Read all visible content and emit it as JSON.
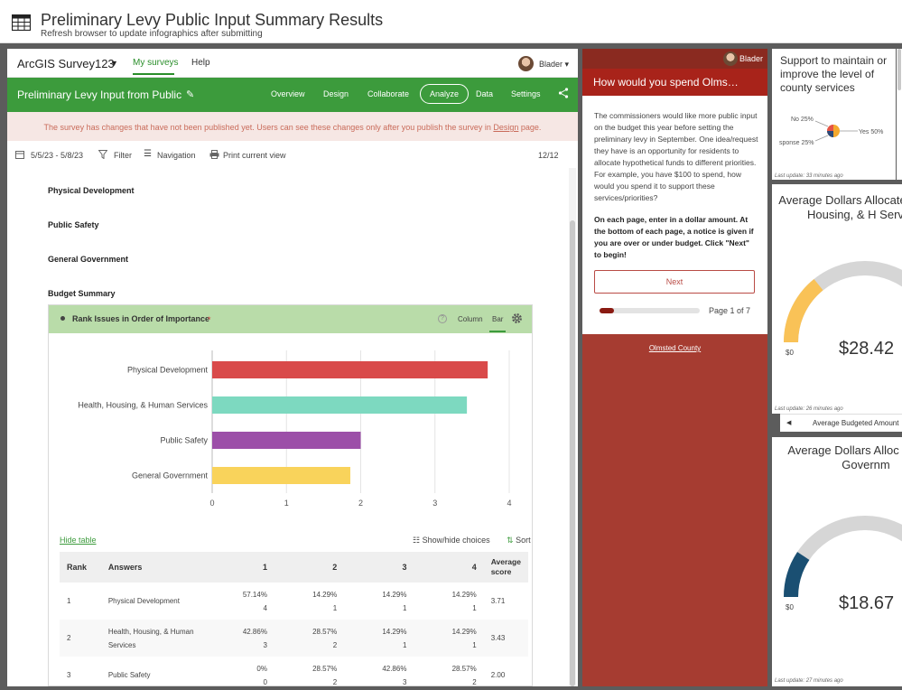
{
  "header": {
    "title": "Preliminary Levy Public Input Summary Results",
    "subtitle": "Refresh browser to update infographics after submitting",
    "icon": "table-icon"
  },
  "survey": {
    "brand": "ArcGIS Survey123",
    "nav": {
      "my_surveys": "My surveys",
      "help": "Help"
    },
    "user": "Blader",
    "survey_name": "Preliminary Levy Input from Public",
    "tabs": [
      "Overview",
      "Design",
      "Collaborate",
      "Analyze",
      "Data",
      "Settings"
    ],
    "active_tab": "Analyze",
    "warning_pre": "The survey has changes that have not been published yet. Users can see these changes only after you publish the survey in",
    "warning_link": "Design",
    "warning_post": "page.",
    "date_range": "5/5/23 - 5/8/23",
    "filter": "Filter",
    "navigation": "Navigation",
    "print": "Print current view",
    "count": "12/12",
    "sections": [
      "Physical Development",
      "Public Safety",
      "General Government",
      "Budget Summary"
    ],
    "question": {
      "title": "Rank Issues in Order of Importance",
      "required_mark": "*",
      "view_column": "Column",
      "view_bar": "Bar"
    },
    "hide_table": "Hide table",
    "show_hide": "Show/hide choices",
    "sort": "Sort",
    "table": {
      "headers": [
        "Rank",
        "Answers",
        "1",
        "2",
        "3",
        "4",
        "Average score"
      ],
      "rows": [
        {
          "rank": "1",
          "answer": "Physical Development",
          "c1p": "57.14%",
          "c1n": "4",
          "c2p": "14.29%",
          "c2n": "1",
          "c3p": "14.29%",
          "c3n": "1",
          "c4p": "14.29%",
          "c4n": "1",
          "avg": "3.71"
        },
        {
          "rank": "2",
          "answer": "Health, Housing, & Human Services",
          "c1p": "42.86%",
          "c1n": "3",
          "c2p": "28.57%",
          "c2n": "2",
          "c3p": "14.29%",
          "c3n": "1",
          "c4p": "14.29%",
          "c4n": "1",
          "avg": "3.43"
        },
        {
          "rank": "3",
          "answer": "Public Safety",
          "c1p": "0%",
          "c1n": "0",
          "c2p": "28.57%",
          "c2n": "2",
          "c3p": "42.86%",
          "c3n": "3",
          "c4p": "28.57%",
          "c4n": "2",
          "avg": "2.00"
        }
      ]
    }
  },
  "chart_data": {
    "type": "bar",
    "orientation": "horizontal",
    "categories": [
      "Physical Development",
      "Health, Housing, & Human Services",
      "Public Safety",
      "General Government"
    ],
    "values": [
      3.71,
      3.43,
      2.0,
      1.86
    ],
    "colors": [
      "#d94a4a",
      "#7dd9c0",
      "#9c4fa8",
      "#f9d35b"
    ],
    "xlim": [
      0,
      4
    ],
    "xticks": [
      "0",
      "1",
      "2",
      "3",
      "4"
    ]
  },
  "form_panel": {
    "user": "Blader",
    "title": "How would you spend Olms…",
    "intro": "The commissioners would like more public input on the budget this year before setting the preliminary levy in September. One idea/request they have is an opportunity for residents to allocate hypothetical funds to different priorities. For example, you have $100 to spend, how would you spend it to support these services/priorities?",
    "instructions": "On each page, enter in a dollar amount. At the bottom of each page, a notice is given if you are over or under budget. Click \"Next\" to begin!",
    "next_button": "Next",
    "page_label": "Page 1 of 7",
    "progress": 0.143,
    "footer_link": "Olmsted County"
  },
  "support_panel": {
    "title": "Support to maintain or improve the level of county services",
    "label_no": "No 25%",
    "label_yes": "Yes 50%",
    "label_other": "sponse 25%",
    "updated": "Last update: 33 minutes ago"
  },
  "gauge1": {
    "title": "Average Dollars Allocated Health, Housing, & H Services",
    "value": "$28.42",
    "zero": "$0",
    "fraction": 0.284,
    "color": "#f9c257",
    "updated": "Last update: 26 minutes ago",
    "nav_label": "Average Budgeted Amount"
  },
  "gauge2": {
    "title": "Average Dollars Alloc General Governm",
    "value": "$18.67",
    "zero": "$0",
    "fraction": 0.187,
    "color": "#1a4f72",
    "updated": "Last update: 27 minutes ago"
  }
}
